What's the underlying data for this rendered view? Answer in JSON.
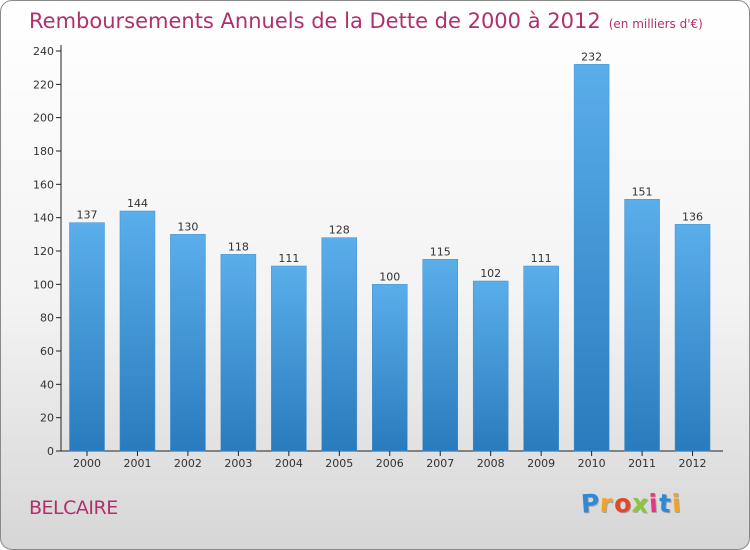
{
  "chart_data": {
    "type": "bar",
    "title": "Remboursements Annuels de la Dette de 2000 à 2012",
    "subtitle": "(en milliers d'€)",
    "categories": [
      "2000",
      "2001",
      "2002",
      "2003",
      "2004",
      "2005",
      "2006",
      "2007",
      "2008",
      "2009",
      "2010",
      "2011",
      "2012"
    ],
    "values": [
      137,
      144,
      130,
      118,
      111,
      128,
      100,
      115,
      102,
      111,
      232,
      151,
      136
    ],
    "yticks": [
      0,
      20,
      40,
      60,
      80,
      100,
      120,
      140,
      160,
      180,
      200,
      220,
      240
    ],
    "ylim": [
      0,
      240
    ],
    "grid": false,
    "legend": "none",
    "bar_color_top": "#5aaeea",
    "bar_color_bottom": "#2a7bbd"
  },
  "footer": {
    "commune": "BELCAIRE",
    "brand_letters": [
      {
        "ch": "P",
        "color": "#2e8ad6"
      },
      {
        "ch": "r",
        "color": "#f0a32a"
      },
      {
        "ch": "o",
        "color": "#e2472a"
      },
      {
        "ch": "x",
        "color": "#8cc63f"
      },
      {
        "ch": "i",
        "color": "#e03a86"
      },
      {
        "ch": "t",
        "color": "#2e8ad6"
      },
      {
        "ch": "i",
        "color": "#f0a32a"
      }
    ]
  }
}
